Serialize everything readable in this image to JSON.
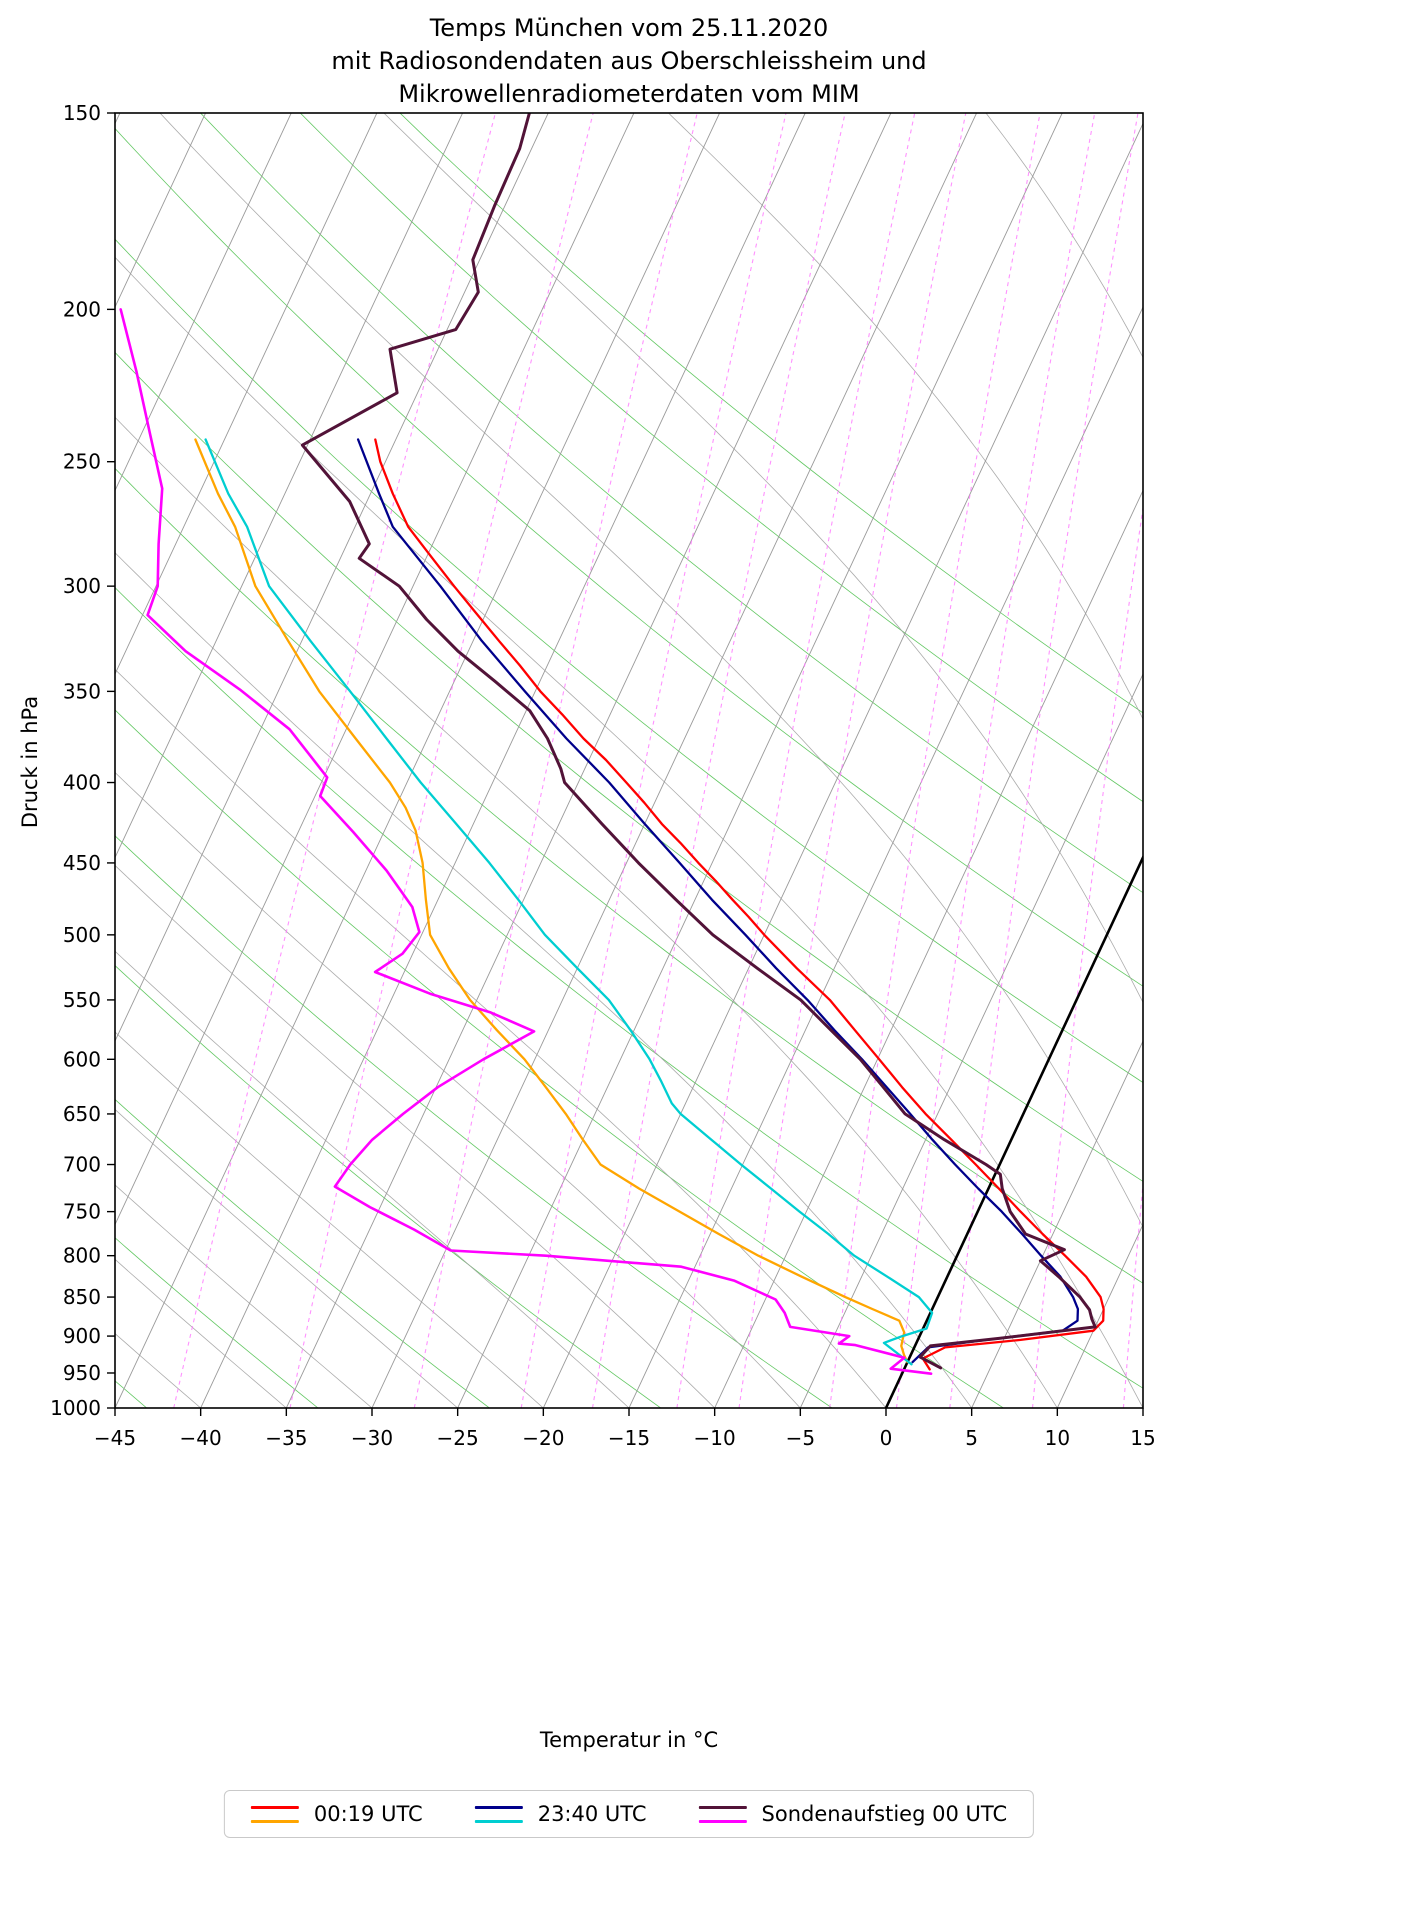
{
  "title": {
    "line1": "Temps München vom 25.11.2020",
    "line2": "mit Radiosondendaten aus Oberschleissheim und",
    "line3": "Mikrowellenradiometerdaten vom MIM"
  },
  "axes": {
    "x": {
      "label": "Temperatur in °C",
      "min": -45,
      "max": 15,
      "ticks": [
        -45,
        -40,
        -35,
        -30,
        -25,
        -20,
        -15,
        -10,
        -5,
        0,
        5,
        10,
        15
      ],
      "tick_labels": [
        "−45",
        "−40",
        "−35",
        "−30",
        "−25",
        "−20",
        "−15",
        "−10",
        "−5",
        "0",
        "5",
        "10",
        "15"
      ]
    },
    "y": {
      "label": "Druck in hPa",
      "min": 150,
      "max": 1000,
      "scale": "log",
      "ticks": [
        150,
        200,
        250,
        300,
        350,
        400,
        450,
        500,
        550,
        600,
        650,
        700,
        750,
        800,
        850,
        900,
        950,
        1000
      ]
    }
  },
  "chart_data": {
    "type": "line",
    "diagram": "Skew-T log-p Temps",
    "title": "Temps München vom 25.11.2020 mit Radiosondendaten aus Oberschleissheim und Mikrowellenradiometerdaten vom MIM",
    "xlabel": "Temperatur in °C",
    "ylabel": "Druck in hPa",
    "x_range": [
      -45,
      15
    ],
    "y_range": [
      150,
      1000
    ],
    "y_scale": "log",
    "skew_deg_per_ln_p": 18.6,
    "points_format": "[pressure_hPa, temperature_C]",
    "grid": {
      "isotherm_color": "#9a9a9a",
      "isotherm_step": 5,
      "zero_isotherm_color": "#000000",
      "dry_adiabat_color": "#46bd46",
      "dry_adiabat_step": 10,
      "moist_adiabat_color": "#a3a3a3",
      "mixing_ratio_color": "#ff77ff",
      "mixing_ratio_values": [
        0.1,
        0.2,
        0.4,
        0.7,
        1,
        1.5,
        2,
        3,
        4,
        5,
        7,
        10
      ]
    },
    "series": [
      {
        "name": "00:19 UTC Temperatur",
        "legend": "00:19 UTC",
        "role": "temperature",
        "color": "#ff0000",
        "points": [
          [
            242,
            -56.2
          ],
          [
            250,
            -55.3
          ],
          [
            262,
            -53.7
          ],
          [
            275,
            -51.9
          ],
          [
            287,
            -49.8
          ],
          [
            300,
            -47.6
          ],
          [
            312,
            -45.6
          ],
          [
            325,
            -43.5
          ],
          [
            337,
            -41.6
          ],
          [
            350,
            -39.7
          ],
          [
            362,
            -37.8
          ],
          [
            375,
            -35.9
          ],
          [
            387,
            -34.0
          ],
          [
            400,
            -32.2
          ],
          [
            412,
            -30.6
          ],
          [
            425,
            -29.0
          ],
          [
            437,
            -27.4
          ],
          [
            450,
            -25.8
          ],
          [
            462,
            -24.3
          ],
          [
            475,
            -22.8
          ],
          [
            487,
            -21.4
          ],
          [
            500,
            -20.0
          ],
          [
            525,
            -17.2
          ],
          [
            550,
            -14.4
          ],
          [
            575,
            -12.1
          ],
          [
            600,
            -9.9
          ],
          [
            625,
            -7.8
          ],
          [
            650,
            -5.7
          ],
          [
            675,
            -3.5
          ],
          [
            700,
            -1.4
          ],
          [
            725,
            0.6
          ],
          [
            750,
            2.5
          ],
          [
            775,
            4.4
          ],
          [
            800,
            6.3
          ],
          [
            825,
            8.1
          ],
          [
            850,
            9.5
          ],
          [
            865,
            10.0
          ],
          [
            880,
            10.3
          ],
          [
            893,
            10.0
          ],
          [
            905,
            6.0
          ],
          [
            915,
            1.8
          ],
          [
            930,
            0.8
          ],
          [
            945,
            1.5
          ]
        ]
      },
      {
        "name": "00:19 UTC Taupunkt",
        "legend": "00:19 UTC",
        "role": "dewpoint",
        "color": "#ffa500",
        "points": [
          [
            242,
            -66.7
          ],
          [
            262,
            -63.9
          ],
          [
            275,
            -62.0
          ],
          [
            300,
            -59.2
          ],
          [
            325,
            -55.8
          ],
          [
            350,
            -52.6
          ],
          [
            375,
            -49.2
          ],
          [
            400,
            -46.0
          ],
          [
            415,
            -44.4
          ],
          [
            429,
            -43.2
          ],
          [
            450,
            -41.9
          ],
          [
            475,
            -40.7
          ],
          [
            500,
            -39.5
          ],
          [
            525,
            -37.5
          ],
          [
            550,
            -35.4
          ],
          [
            575,
            -33.0
          ],
          [
            600,
            -30.6
          ],
          [
            625,
            -28.6
          ],
          [
            650,
            -26.7
          ],
          [
            675,
            -25.0
          ],
          [
            700,
            -23.3
          ],
          [
            725,
            -20.4
          ],
          [
            750,
            -17.4
          ],
          [
            775,
            -14.5
          ],
          [
            800,
            -11.6
          ],
          [
            825,
            -8.5
          ],
          [
            850,
            -5.4
          ],
          [
            865,
            -3.5
          ],
          [
            880,
            -1.6
          ],
          [
            895,
            -1.0
          ],
          [
            913,
            -0.8
          ],
          [
            925,
            -0.4
          ],
          [
            935,
            0.0
          ]
        ]
      },
      {
        "name": "23:40 UTC Temperatur",
        "legend": "23:40 UTC",
        "role": "temperature",
        "color": "#00008b",
        "points": [
          [
            242,
            -57.2
          ],
          [
            262,
            -54.5
          ],
          [
            275,
            -52.8
          ],
          [
            300,
            -48.4
          ],
          [
            325,
            -44.5
          ],
          [
            350,
            -40.6
          ],
          [
            375,
            -36.9
          ],
          [
            400,
            -33.2
          ],
          [
            425,
            -30.0
          ],
          [
            450,
            -26.9
          ],
          [
            475,
            -24.0
          ],
          [
            500,
            -21.1
          ],
          [
            525,
            -18.4
          ],
          [
            550,
            -15.7
          ],
          [
            575,
            -13.3
          ],
          [
            600,
            -10.9
          ],
          [
            625,
            -8.7
          ],
          [
            650,
            -6.6
          ],
          [
            675,
            -4.6
          ],
          [
            700,
            -2.6
          ],
          [
            725,
            -0.6
          ],
          [
            750,
            1.4
          ],
          [
            775,
            3.2
          ],
          [
            800,
            4.9
          ],
          [
            825,
            6.6
          ],
          [
            850,
            7.9
          ],
          [
            865,
            8.5
          ],
          [
            880,
            8.8
          ],
          [
            893,
            8.2
          ],
          [
            905,
            4.0
          ],
          [
            915,
            0.8
          ],
          [
            935,
            0.3
          ]
        ]
      },
      {
        "name": "23:40 UTC Taupunkt",
        "legend": "23:40 UTC",
        "role": "dewpoint",
        "color": "#00ced1",
        "points": [
          [
            242,
            -66.1
          ],
          [
            262,
            -63.3
          ],
          [
            275,
            -61.3
          ],
          [
            300,
            -58.4
          ],
          [
            325,
            -54.5
          ],
          [
            350,
            -50.8
          ],
          [
            375,
            -47.4
          ],
          [
            400,
            -44.2
          ],
          [
            425,
            -41.0
          ],
          [
            450,
            -38.0
          ],
          [
            475,
            -35.3
          ],
          [
            500,
            -32.8
          ],
          [
            525,
            -30.0
          ],
          [
            550,
            -27.3
          ],
          [
            575,
            -25.2
          ],
          [
            600,
            -23.3
          ],
          [
            620,
            -22.0
          ],
          [
            640,
            -20.8
          ],
          [
            650,
            -20.0
          ],
          [
            675,
            -17.5
          ],
          [
            700,
            -15.1
          ],
          [
            725,
            -12.7
          ],
          [
            750,
            -10.4
          ],
          [
            775,
            -8.1
          ],
          [
            800,
            -6.0
          ],
          [
            825,
            -3.5
          ],
          [
            850,
            -1.1
          ],
          [
            870,
            0.1
          ],
          [
            890,
            0.2
          ],
          [
            900,
            -1.0
          ],
          [
            909,
            -1.9
          ],
          [
            926,
            -0.6
          ],
          [
            938,
            0.3
          ]
        ]
      },
      {
        "name": "Sondenaufstieg 00 UTC Temperatur",
        "legend": "Sondenaufstieg 00 UTC",
        "role": "temperature",
        "color": "#521338",
        "points": [
          [
            150,
            -56.1
          ],
          [
            158,
            -55.7
          ],
          [
            172,
            -55.6
          ],
          [
            186,
            -55.4
          ],
          [
            195,
            -54.2
          ],
          [
            206,
            -54.5
          ],
          [
            212,
            -57.8
          ],
          [
            226,
            -56.2
          ],
          [
            244,
            -60.3
          ],
          [
            265,
            -56.0
          ],
          [
            282,
            -53.7
          ],
          [
            288,
            -53.9
          ],
          [
            300,
            -50.8
          ],
          [
            315,
            -48.3
          ],
          [
            330,
            -45.6
          ],
          [
            345,
            -42.6
          ],
          [
            360,
            -39.8
          ],
          [
            375,
            -38.0
          ],
          [
            392,
            -36.4
          ],
          [
            400,
            -35.8
          ],
          [
            425,
            -32.5
          ],
          [
            450,
            -29.3
          ],
          [
            475,
            -26.1
          ],
          [
            500,
            -23.0
          ],
          [
            525,
            -19.5
          ],
          [
            550,
            -16.1
          ],
          [
            575,
            -13.5
          ],
          [
            600,
            -11.0
          ],
          [
            625,
            -8.9
          ],
          [
            650,
            -6.9
          ],
          [
            675,
            -3.9
          ],
          [
            700,
            -0.8
          ],
          [
            710,
            0.3
          ],
          [
            725,
            0.8
          ],
          [
            750,
            1.9
          ],
          [
            775,
            3.4
          ],
          [
            793,
            6.1
          ],
          [
            806,
            5.0
          ],
          [
            825,
            6.5
          ],
          [
            850,
            8.3
          ],
          [
            866,
            9.2
          ],
          [
            878,
            9.6
          ],
          [
            888,
            10.0
          ],
          [
            903,
            4.7
          ],
          [
            913,
            0.9
          ],
          [
            928,
            0.6
          ],
          [
            943,
            2.1
          ]
        ]
      },
      {
        "name": "Sondenaufstieg 00 UTC Taupunkt",
        "legend": "Sondenaufstieg 00 UTC",
        "role": "dewpoint",
        "color": "#ff00ff",
        "points": [
          [
            200,
            -74.6
          ],
          [
            219,
            -72.0
          ],
          [
            240,
            -69.5
          ],
          [
            260,
            -67.3
          ],
          [
            282,
            -66.0
          ],
          [
            300,
            -64.9
          ],
          [
            313,
            -64.7
          ],
          [
            330,
            -61.5
          ],
          [
            349,
            -57.3
          ],
          [
            370,
            -53.3
          ],
          [
            397,
            -49.8
          ],
          [
            408,
            -49.7
          ],
          [
            430,
            -46.8
          ],
          [
            455,
            -43.8
          ],
          [
            480,
            -41.3
          ],
          [
            498,
            -40.2
          ],
          [
            514,
            -40.6
          ],
          [
            528,
            -41.7
          ],
          [
            545,
            -37.9
          ],
          [
            560,
            -33.9
          ],
          [
            576,
            -30.8
          ],
          [
            600,
            -33.0
          ],
          [
            625,
            -34.9
          ],
          [
            650,
            -36.2
          ],
          [
            675,
            -37.3
          ],
          [
            700,
            -37.9
          ],
          [
            723,
            -38.2
          ],
          [
            745,
            -35.6
          ],
          [
            770,
            -32.4
          ],
          [
            794,
            -29.7
          ],
          [
            800,
            -24.0
          ],
          [
            813,
            -15.8
          ],
          [
            830,
            -12.3
          ],
          [
            853,
            -9.4
          ],
          [
            870,
            -8.5
          ],
          [
            888,
            -7.8
          ],
          [
            900,
            -4.1
          ],
          [
            910,
            -4.5
          ],
          [
            912,
            -3.5
          ],
          [
            929,
            -0.3
          ],
          [
            944,
            -0.8
          ],
          [
            951,
            1.7
          ]
        ]
      }
    ],
    "reference_lines": [
      {
        "name": "0 °C Isotherme",
        "temperature_C": 0,
        "color": "#000000"
      }
    ]
  },
  "legend": {
    "entries": [
      {
        "label": "00:19 UTC",
        "colors": [
          "#ff0000",
          "#ffa500"
        ]
      },
      {
        "label": "23:40 UTC",
        "colors": [
          "#00008b",
          "#00ced1"
        ]
      },
      {
        "label": "Sondenaufstieg 00 UTC",
        "colors": [
          "#521338",
          "#ff00ff"
        ]
      }
    ]
  }
}
